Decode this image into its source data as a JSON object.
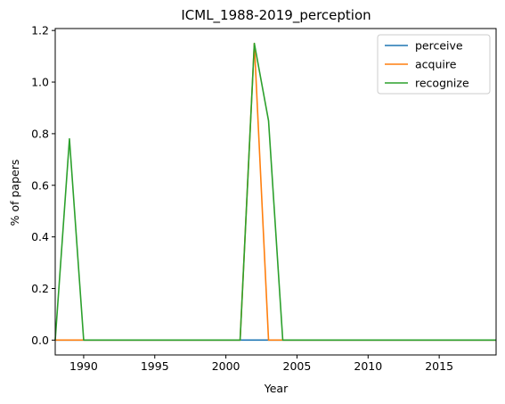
{
  "chart_data": {
    "type": "line",
    "title": "ICML_1988-2019_perception",
    "xlabel": "Year",
    "ylabel": "% of papers",
    "xlim": [
      1988,
      2019
    ],
    "ylim": [
      -0.0575,
      1.2075
    ],
    "xticks": [
      1990,
      1995,
      2000,
      2005,
      2010,
      2015
    ],
    "yticks": [
      0.0,
      0.2,
      0.4,
      0.6,
      0.8,
      1.0,
      1.2
    ],
    "ytick_labels": [
      "0.0",
      "0.2",
      "0.4",
      "0.6",
      "0.8",
      "1.0",
      "1.2"
    ],
    "grid": false,
    "legend_position": "top-right",
    "x": [
      1988,
      1989,
      1990,
      1991,
      1992,
      1993,
      1994,
      1995,
      1996,
      1997,
      1998,
      1999,
      2000,
      2001,
      2002,
      2003,
      2004,
      2005,
      2006,
      2007,
      2008,
      2009,
      2010,
      2011,
      2012,
      2013,
      2014,
      2015,
      2016,
      2017,
      2018,
      2019
    ],
    "series": [
      {
        "name": "perceive",
        "color": "#1f77b4",
        "values": [
          0,
          0,
          0,
          0,
          0,
          0,
          0,
          0,
          0,
          0,
          0,
          0,
          0,
          0,
          0,
          0,
          0,
          0,
          0,
          0,
          0,
          0,
          0,
          0,
          0,
          0,
          0,
          0,
          0,
          0,
          0,
          0
        ]
      },
      {
        "name": "acquire",
        "color": "#ff7f0e",
        "values": [
          0,
          0,
          0,
          0,
          0,
          0,
          0,
          0,
          0,
          0,
          0,
          0,
          0,
          0,
          1.15,
          0,
          0,
          0,
          0,
          0,
          0,
          0,
          0,
          0,
          0,
          0,
          0,
          0,
          0,
          0,
          0,
          0
        ]
      },
      {
        "name": "recognize",
        "color": "#2ca02c",
        "values": [
          0,
          0.78,
          0,
          0,
          0,
          0,
          0,
          0,
          0,
          0,
          0,
          0,
          0,
          0,
          1.15,
          0.85,
          0,
          0,
          0,
          0,
          0,
          0,
          0,
          0,
          0,
          0,
          0,
          0,
          0,
          0,
          0,
          0
        ]
      }
    ]
  }
}
